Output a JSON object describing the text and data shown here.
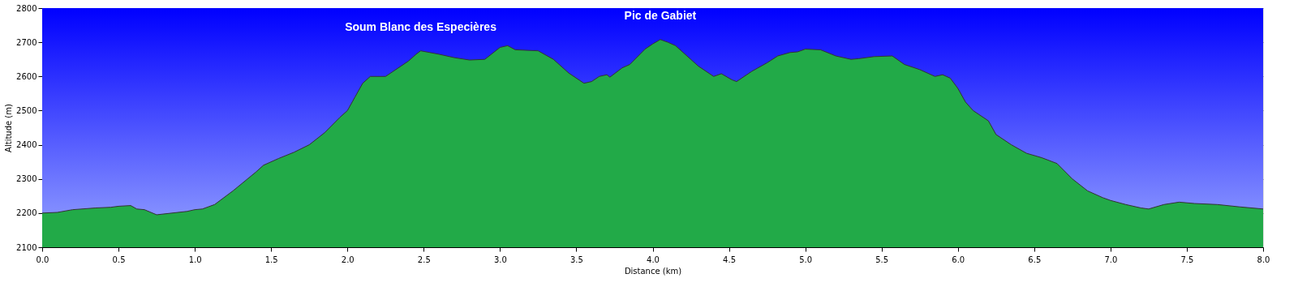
{
  "chart_data": {
    "type": "area",
    "xlabel": "Distance    (km)",
    "ylabel": "Altitude (m)",
    "x": [
      0.0,
      0.1,
      0.2,
      0.35,
      0.45,
      0.5,
      0.58,
      0.62,
      0.67,
      0.75,
      0.85,
      0.95,
      1.0,
      1.05,
      1.13,
      1.25,
      1.4,
      1.45,
      1.55,
      1.65,
      1.75,
      1.85,
      1.95,
      2.0,
      2.05,
      2.1,
      2.15,
      2.25,
      2.35,
      2.4,
      2.45,
      2.48,
      2.6,
      2.7,
      2.8,
      2.9,
      3.0,
      3.05,
      3.1,
      3.25,
      3.35,
      3.45,
      3.55,
      3.6,
      3.65,
      3.7,
      3.72,
      3.8,
      3.85,
      3.95,
      4.0,
      4.05,
      4.1,
      4.15,
      4.25,
      4.3,
      4.4,
      4.45,
      4.52,
      4.55,
      4.65,
      4.75,
      4.82,
      4.9,
      4.95,
      5.0,
      5.1,
      5.2,
      5.3,
      5.35,
      5.45,
      5.57,
      5.65,
      5.75,
      5.85,
      5.9,
      5.95,
      6.0,
      6.05,
      6.1,
      6.2,
      6.25,
      6.35,
      6.45,
      6.55,
      6.65,
      6.75,
      6.85,
      6.95,
      7.0,
      7.1,
      7.2,
      7.25,
      7.35,
      7.45,
      7.55,
      7.7,
      7.85,
      8.0
    ],
    "series": [
      {
        "color": "#22aa48",
        "values": [
          2200,
          2202,
          2210,
          2215,
          2217,
          2220,
          2222,
          2212,
          2210,
          2195,
          2200,
          2205,
          2210,
          2212,
          2225,
          2265,
          2320,
          2340,
          2360,
          2378,
          2400,
          2435,
          2480,
          2500,
          2540,
          2580,
          2600,
          2600,
          2630,
          2645,
          2665,
          2675,
          2665,
          2655,
          2648,
          2650,
          2685,
          2690,
          2678,
          2675,
          2650,
          2610,
          2580,
          2585,
          2600,
          2605,
          2598,
          2625,
          2635,
          2680,
          2695,
          2708,
          2700,
          2690,
          2650,
          2630,
          2600,
          2608,
          2590,
          2585,
          2615,
          2640,
          2660,
          2670,
          2672,
          2680,
          2678,
          2660,
          2650,
          2652,
          2658,
          2660,
          2635,
          2620,
          2600,
          2605,
          2595,
          2565,
          2525,
          2500,
          2470,
          2430,
          2400,
          2375,
          2362,
          2345,
          2300,
          2265,
          2245,
          2237,
          2225,
          2215,
          2212,
          2225,
          2232,
          2228,
          2225,
          2218,
          2212
        ]
      }
    ],
    "xlim": [
      0,
      8
    ],
    "ylim": [
      2100,
      2800
    ],
    "xticks": [
      {
        "value": 0,
        "label": "0.0"
      },
      0.5,
      {
        "value": 1,
        "label": "1.0"
      },
      1.5,
      {
        "value": 2,
        "label": "2.0"
      },
      2.5,
      {
        "value": 3,
        "label": "3.0"
      },
      3.5,
      {
        "value": 4,
        "label": "4.0"
      },
      4.5,
      {
        "value": 5,
        "label": "5.0"
      },
      5.5,
      {
        "value": 6,
        "label": "6.0"
      },
      6.5,
      {
        "value": 7,
        "label": "7.0"
      },
      7.5,
      {
        "value": 8,
        "label": "8.0"
      }
    ],
    "yticks": [
      2100,
      2200,
      2300,
      2400,
      2500,
      2600,
      2700,
      2800
    ],
    "grid": "y",
    "annotations": [
      {
        "text": "Soum Blanc des Especières",
        "x": 2.48,
        "y": 2675
      },
      {
        "text": "Pic de Gabiet",
        "x": 4.05,
        "y": 2708
      }
    ]
  }
}
